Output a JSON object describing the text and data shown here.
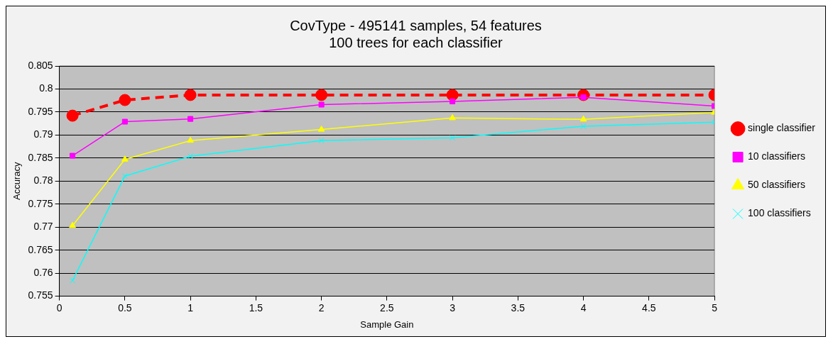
{
  "chart_data": {
    "type": "line",
    "title": "CovType - 495141 samples, 54 features\n100 trees for each classifier",
    "xlabel": "Sample Gain",
    "ylabel": "Accuracy",
    "x": [
      0.1,
      0.5,
      1,
      2,
      3,
      4,
      5
    ],
    "series": [
      {
        "name": "single classifier",
        "color": "#ff0000",
        "marker": "circle",
        "line_style": "dashed",
        "values": [
          0.7942,
          0.7976,
          0.7987,
          0.7987,
          0.7987,
          0.7987,
          0.7987
        ]
      },
      {
        "name": "10 classifiers",
        "color": "#ff00ff",
        "marker": "square",
        "line_style": "solid",
        "values": [
          0.7855,
          0.7929,
          0.7935,
          0.7966,
          0.7973,
          0.7982,
          0.7963
        ]
      },
      {
        "name": "50 classifiers",
        "color": "#ffff00",
        "marker": "triangle",
        "line_style": "solid",
        "values": [
          0.7703,
          0.7847,
          0.7888,
          0.7912,
          0.7937,
          0.7934,
          0.7949
        ]
      },
      {
        "name": "100 classifiers",
        "color": "#00ffff",
        "marker": "cross",
        "line_style": "solid",
        "values": [
          0.7584,
          0.7811,
          0.7854,
          0.7888,
          0.7894,
          0.7919,
          0.7928
        ]
      }
    ],
    "xlim": [
      0,
      5
    ],
    "xticks": [
      0,
      0.5,
      1,
      1.5,
      2,
      2.5,
      3,
      3.5,
      4,
      4.5,
      5
    ],
    "ylim": [
      0.755,
      0.805
    ],
    "yticks": [
      0.755,
      0.76,
      0.765,
      0.77,
      0.775,
      0.78,
      0.785,
      0.79,
      0.795,
      0.8,
      0.805
    ],
    "grid": "y",
    "legend": "right"
  }
}
